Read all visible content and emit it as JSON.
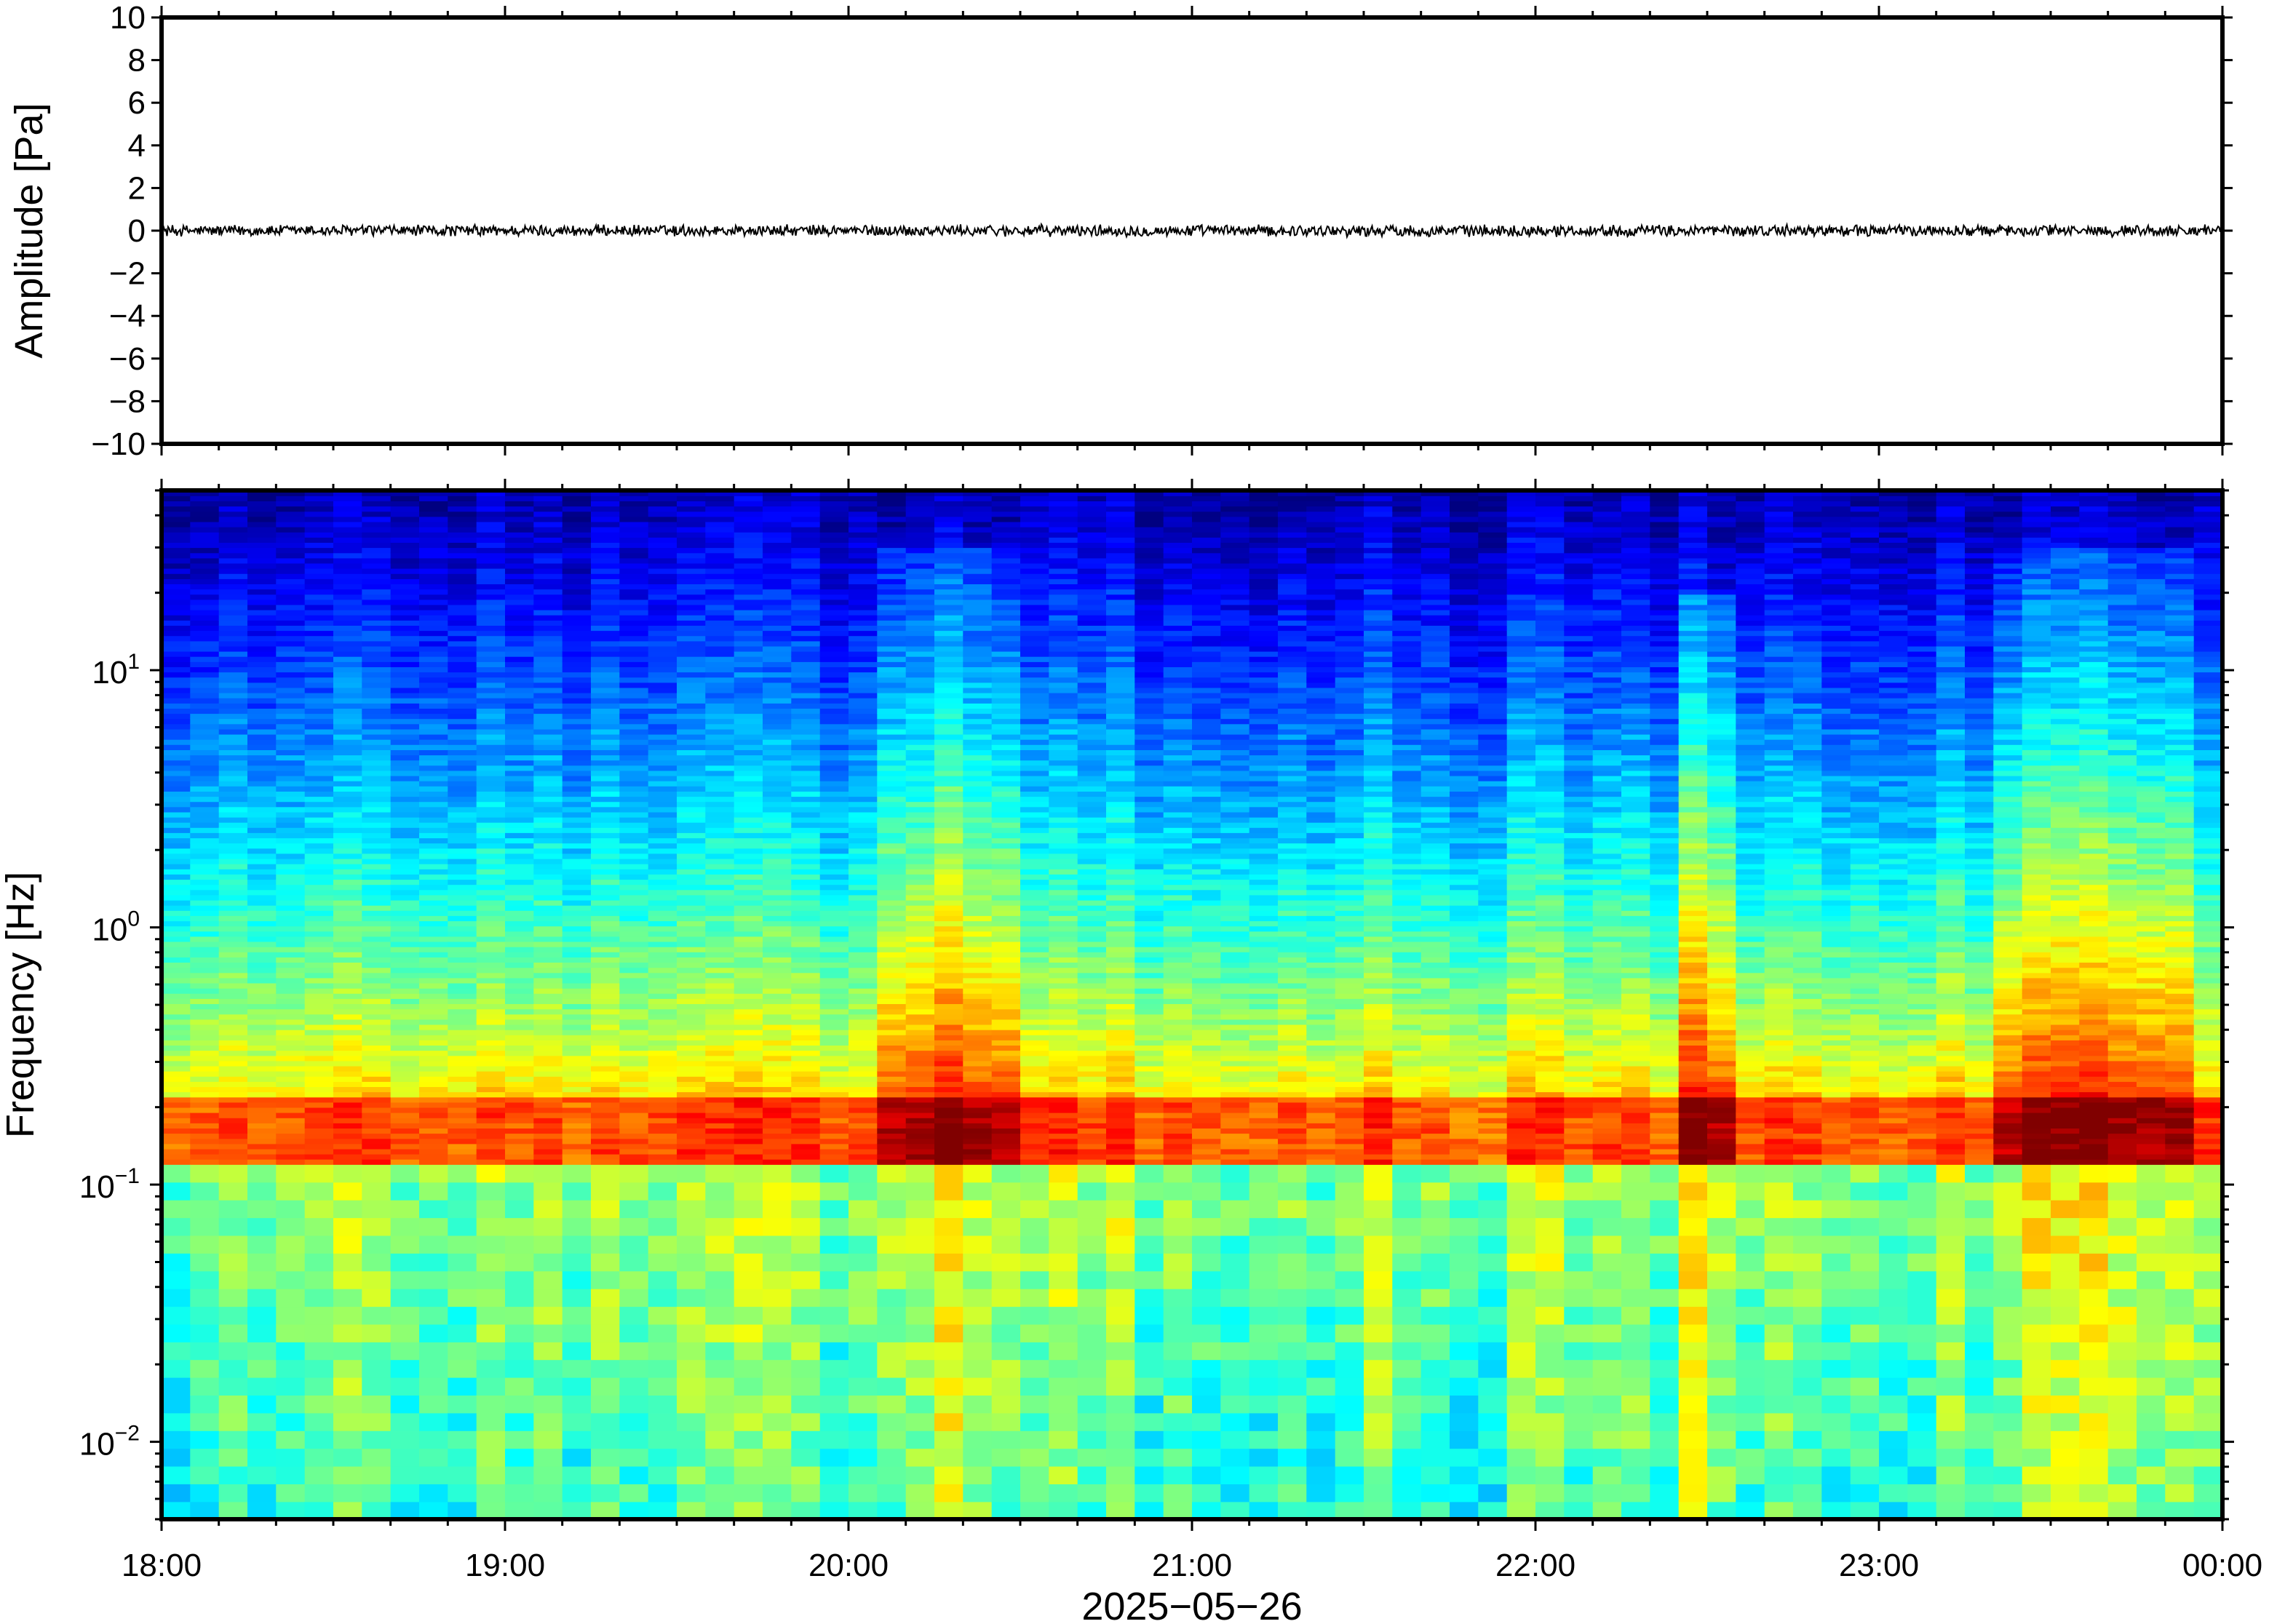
{
  "chart_data": [
    {
      "type": "line",
      "panel": "waveform",
      "ylabel": "Amplitude [Pa]",
      "ylim": [
        -10,
        10
      ],
      "y_ticks": [
        "10",
        "8",
        "6",
        "4",
        "2",
        "0",
        "−2",
        "−4",
        "−6",
        "−8",
        "−10"
      ],
      "y_tick_values": [
        10,
        8,
        6,
        4,
        2,
        0,
        -2,
        -4,
        -6,
        -8,
        -10
      ],
      "xlim": [
        "2025-05-26 18:00",
        "2025-05-27 00:00"
      ],
      "series": [
        {
          "values_description_free": true,
          "amplitude_range": [
            -0.3,
            0.3
          ],
          "mean": 0
        }
      ],
      "grid": false
    },
    {
      "type": "heatmap",
      "panel": "spectrogram",
      "ylabel": "Frequency [Hz]",
      "yscale": "log",
      "ylim": [
        0.005,
        50
      ],
      "y_ticks": [
        {
          "value": 10,
          "base": "10",
          "exp": "1"
        },
        {
          "value": 1,
          "base": "10",
          "exp": "0"
        },
        {
          "value": 0.1,
          "base": "10",
          "exp": "−1"
        },
        {
          "value": 0.01,
          "base": "10",
          "exp": "−2"
        }
      ],
      "xlabel": "2025−05−26",
      "x_ticks": [
        "18:00",
        "19:00",
        "20:00",
        "21:00",
        "22:00",
        "23:00",
        "00:00"
      ],
      "x_tick_values": [
        "18:00",
        "19:00",
        "20:00",
        "21:00",
        "22:00",
        "23:00",
        "00:00"
      ],
      "xlim": [
        "18:00",
        "00:00"
      ],
      "colormap": "jet",
      "peak_band_hz": [
        0.12,
        0.22
      ],
      "broadband_bursts": [
        {
          "start": "20:07",
          "end": "20:32",
          "top_hz": 30
        },
        {
          "start": "22:25",
          "end": "22:35",
          "top_hz": 20
        },
        {
          "start": "23:20",
          "end": "23:55",
          "top_hz": 30
        }
      ],
      "grid": false
    }
  ]
}
